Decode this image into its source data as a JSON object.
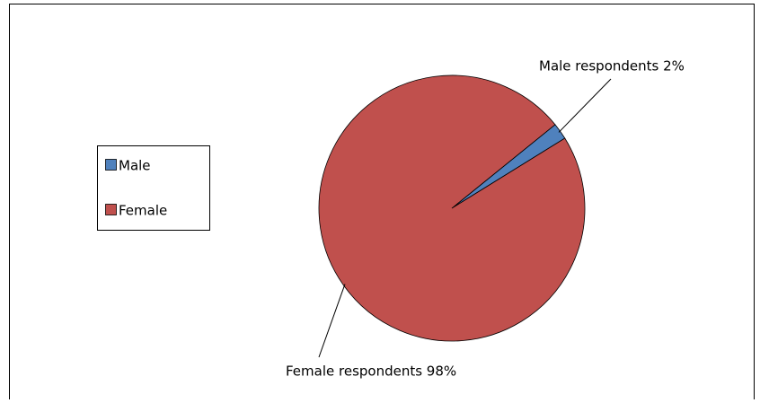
{
  "chart_data": {
    "type": "pie",
    "categories": [
      "Male",
      "Female"
    ],
    "values": [
      2,
      98
    ],
    "value_labels": [
      "Male respondents 2%",
      "Female respondents 98%"
    ],
    "colors": [
      "#4f81bd",
      "#c0504d"
    ],
    "legend": "left"
  }
}
